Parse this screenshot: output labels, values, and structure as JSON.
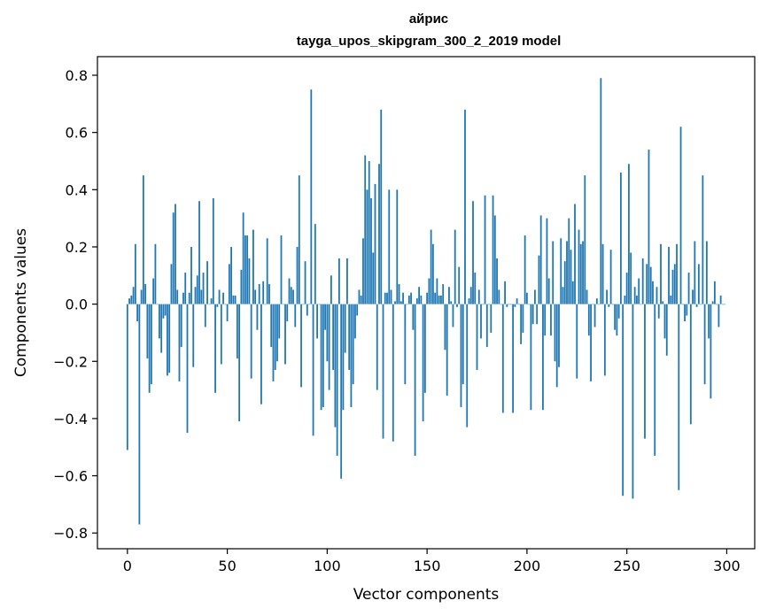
{
  "chart_data": {
    "type": "bar",
    "title": "айрис",
    "subtitle": "tayga_upos_skipgram_300_2_2019 model",
    "xlabel": "Vector components",
    "ylabel": "Components values",
    "xlim": [
      -15,
      314
    ],
    "ylim": [
      -0.855,
      0.865
    ],
    "xticks": [
      0,
      50,
      100,
      150,
      200,
      250,
      300
    ],
    "xtick_labels": [
      "0",
      "50",
      "100",
      "150",
      "200",
      "250",
      "300"
    ],
    "yticks": [
      -0.8,
      -0.6,
      -0.4,
      -0.2,
      0.0,
      0.2,
      0.4,
      0.6,
      0.8
    ],
    "ytick_labels": [
      "−0.8",
      "−0.6",
      "−0.4",
      "−0.2",
      "0.0",
      "0.2",
      "0.4",
      "0.6",
      "0.8"
    ],
    "bar_color": "#1f77b4",
    "values": [
      -0.51,
      0.02,
      0.03,
      0.06,
      0.21,
      -0.06,
      -0.77,
      0.05,
      0.45,
      0.07,
      -0.19,
      -0.31,
      -0.28,
      0.09,
      0.21,
      0.0,
      -0.12,
      -0.17,
      -0.05,
      -0.04,
      -0.25,
      -0.24,
      0.14,
      0.32,
      0.35,
      0.05,
      -0.27,
      -0.15,
      0.04,
      0.11,
      -0.45,
      0.04,
      0.2,
      -0.22,
      0.06,
      0.1,
      0.36,
      0.05,
      0.11,
      -0.08,
      0.15,
      0.0,
      0.02,
      0.37,
      -0.31,
      -0.01,
      0.05,
      -0.21,
      0.04,
      0.0,
      -0.06,
      0.14,
      0.2,
      0.03,
      0.03,
      -0.19,
      -0.41,
      0.12,
      0.32,
      0.24,
      0.24,
      0.16,
      -0.26,
      0.26,
      0.05,
      -0.09,
      0.07,
      -0.35,
      0.08,
      0.0,
      0.23,
      0.07,
      -0.15,
      -0.27,
      -0.23,
      -0.2,
      -0.12,
      0.24,
      0.0,
      -0.21,
      -0.06,
      0.09,
      0.06,
      0.05,
      -0.08,
      0.2,
      0.45,
      -0.29,
      0.0,
      0.15,
      -0.04,
      0.0,
      0.75,
      -0.46,
      0.28,
      -0.12,
      0.0,
      -0.37,
      -0.36,
      -0.09,
      -0.2,
      -0.3,
      0.1,
      -0.23,
      -0.43,
      -0.53,
      0.16,
      -0.61,
      -0.37,
      -0.17,
      0.16,
      -0.23,
      -0.36,
      -0.28,
      -0.12,
      -0.04,
      0.05,
      0.03,
      0.23,
      0.52,
      0.4,
      0.5,
      0.37,
      0.18,
      0.42,
      -0.3,
      0.49,
      0.68,
      -0.47,
      0.04,
      0.04,
      0.4,
      0.05,
      -0.48,
      0.01,
      0.4,
      0.07,
      0.01,
      0.04,
      -0.28,
      0.0,
      0.03,
      0.04,
      -0.09,
      -0.53,
      0.02,
      0.06,
      0.03,
      -0.41,
      -0.31,
      0.04,
      0.09,
      0.26,
      0.21,
      0.04,
      0.09,
      0.03,
      0.03,
      0.07,
      -0.16,
      -0.32,
      0.06,
      0.01,
      -0.08,
      0.26,
      -0.01,
      0.13,
      -0.36,
      -0.28,
      0.68,
      -0.43,
      0.02,
      0.06,
      0.36,
      0.11,
      -0.23,
      0.05,
      -0.12,
      0.0,
      0.38,
      -0.15,
      0.0,
      -0.1,
      0.38,
      0.31,
      0.16,
      0.05,
      0.0,
      -0.38,
      0.08,
      -0.01,
      0.0,
      0.0,
      -0.38,
      -0.01,
      0.02,
      0.0,
      -0.14,
      -0.1,
      0.24,
      0.04,
      0.0,
      -0.37,
      -0.07,
      0.05,
      -0.07,
      0.17,
      0.31,
      -0.37,
      -0.11,
      0.3,
      0.09,
      -0.11,
      0.22,
      -0.2,
      -0.29,
      -0.22,
      0.23,
      0.06,
      0.15,
      0.22,
      0.3,
      0.19,
      0.08,
      0.35,
      -0.26,
      0.26,
      0.21,
      0.22,
      0.45,
      0.05,
      -0.11,
      -0.27,
      0.0,
      -0.08,
      0.02,
      0.0,
      0.79,
      0.21,
      -0.25,
      0.05,
      -0.01,
      0.19,
      0.0,
      -0.09,
      -0.11,
      -0.05,
      0.46,
      -0.67,
      0.03,
      0.11,
      0.49,
      0.18,
      -0.68,
      0.06,
      0.03,
      0.09,
      0.0,
      0.16,
      -0.47,
      0.14,
      0.54,
      0.13,
      0.08,
      -0.53,
      0.06,
      -0.05,
      0.21,
      0.01,
      -0.12,
      -0.18,
      0.2,
      0.03,
      0.12,
      0.14,
      0.21,
      -0.65,
      0.62,
      0.0,
      -0.06,
      -0.04,
      0.11,
      -0.42,
      0.05,
      0.22,
      -0.01,
      0.14,
      0.0,
      0.45,
      -0.28,
      0.22,
      -0.12,
      -0.33,
      0.01,
      0.08,
      0.0,
      -0.08,
      0.03,
      0.0,
      0.0
    ]
  }
}
